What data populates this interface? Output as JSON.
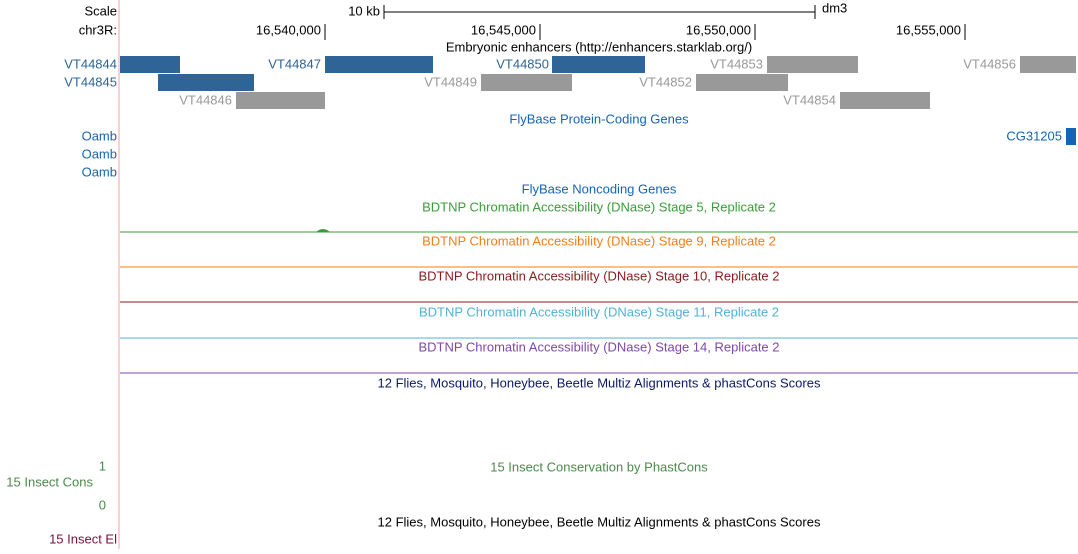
{
  "scale": {
    "label": "Scale",
    "bar": "10 kb",
    "assembly": "dm3"
  },
  "ruler": {
    "chrom": "chr3R:",
    "ticks": [
      "16,540,000",
      "16,545,000",
      "16,550,000",
      "16,555,000"
    ]
  },
  "enhancers": {
    "title": "Embryonic enhancers (http://enhancers.starklab.org/)",
    "features": [
      "VT44844",
      "VT44845",
      "VT44846",
      "VT44847",
      "VT44849",
      "VT44850",
      "VT44852",
      "VT44853",
      "VT44854",
      "VT44856"
    ]
  },
  "coding_genes": {
    "title": "FlyBase Protein-Coding Genes",
    "genes": [
      "Oamb",
      "Oamb",
      "Oamb",
      "CG31205"
    ]
  },
  "noncoding_genes": {
    "title": "FlyBase Noncoding Genes"
  },
  "dnase": {
    "tracks": [
      "BDTNP Chromatin Accessibility (DNase) Stage 5, Replicate 2",
      "BDTNP Chromatin Accessibility (DNase) Stage 9, Replicate 2",
      "BDTNP Chromatin Accessibility (DNase) Stage 10, Replicate 2",
      "BDTNP Chromatin Accessibility (DNase) Stage 11, Replicate 2",
      "BDTNP Chromatin Accessibility (DNase) Stage 14, Replicate 2"
    ]
  },
  "multiz": {
    "title": "12 Flies, Mosquito, Honeybee, Beetle Multiz Alignments & phastCons Scores"
  },
  "conservation": {
    "title": "15 Insect Conservation by PhastCons",
    "label": "15 Insect Cons",
    "max": "1",
    "min": "0"
  },
  "elements": {
    "title": "12 Flies, Mosquito, Honeybee, Beetle Multiz Alignments & phastCons Scores",
    "label": "15 Insect El"
  }
}
